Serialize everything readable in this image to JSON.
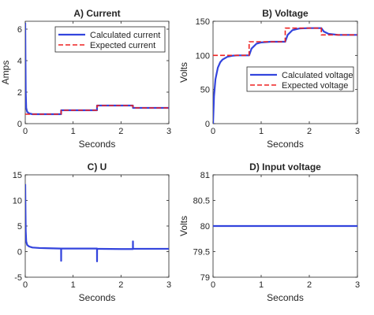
{
  "chart_data": [
    {
      "type": "line",
      "title": "A) Current",
      "xlabel": "Seconds",
      "ylabel": "Amps",
      "xlim": [
        0,
        3
      ],
      "ylim": [
        0,
        6.5
      ],
      "xticks": [
        0,
        1,
        2,
        3
      ],
      "yticks": [
        0,
        2,
        4,
        6
      ],
      "grid": false,
      "legend": "top-right",
      "series": [
        {
          "name": "Calculated current",
          "color": "#3344dd",
          "style": "solid",
          "x": [
            0,
            0.005,
            0.01,
            0.02,
            0.04,
            0.08,
            0.15,
            0.3,
            0.5,
            0.749,
            0.75,
            1.0,
            1.3,
            1.499,
            1.5,
            1.8,
            2.1,
            2.249,
            2.25,
            2.6,
            3.0
          ],
          "y": [
            6.4,
            4.0,
            2.0,
            1.0,
            0.75,
            0.65,
            0.6,
            0.6,
            0.6,
            0.6,
            0.85,
            0.85,
            0.85,
            0.85,
            1.15,
            1.15,
            1.15,
            1.15,
            1.0,
            1.0,
            1.0
          ]
        },
        {
          "name": "Expected current",
          "color": "#ee2222",
          "style": "dashed",
          "x": [
            0,
            0.749,
            0.75,
            1.499,
            1.5,
            2.249,
            2.25,
            3.0
          ],
          "y": [
            0.6,
            0.6,
            0.85,
            0.85,
            1.15,
            1.15,
            1.0,
            1.0
          ]
        }
      ]
    },
    {
      "type": "line",
      "title": "B) Voltage",
      "xlabel": "Seconds",
      "ylabel": "Volts",
      "xlim": [
        0,
        3
      ],
      "ylim": [
        0,
        150
      ],
      "xticks": [
        0,
        1,
        2,
        3
      ],
      "yticks": [
        0,
        50,
        100,
        150
      ],
      "grid": false,
      "legend": "bottom-right",
      "series": [
        {
          "name": "Calculated voltage",
          "color": "#3344dd",
          "style": "solid",
          "x": [
            0,
            0.02,
            0.05,
            0.1,
            0.15,
            0.2,
            0.3,
            0.4,
            0.5,
            0.6,
            0.75,
            0.8,
            0.9,
            1.0,
            1.2,
            1.5,
            1.55,
            1.65,
            1.8,
            2.0,
            2.25,
            2.3,
            2.4,
            2.6,
            3.0
          ],
          "y": [
            0,
            40,
            65,
            82,
            90,
            94,
            98,
            99.5,
            100,
            100,
            100,
            110,
            117,
            119,
            120,
            120,
            130,
            137,
            139.5,
            140,
            140,
            135,
            131.5,
            130,
            130
          ]
        },
        {
          "name": "Expected voltage",
          "color": "#ee2222",
          "style": "dashed",
          "x": [
            0,
            0.749,
            0.75,
            1.499,
            1.5,
            2.249,
            2.25,
            3.0
          ],
          "y": [
            100,
            100,
            120,
            120,
            140,
            140,
            130,
            130
          ]
        }
      ]
    },
    {
      "type": "line",
      "title": "C) U",
      "xlabel": "Seconds",
      "ylabel": "",
      "xlim": [
        0,
        3
      ],
      "ylim": [
        -5,
        15
      ],
      "xticks": [
        0,
        1,
        2,
        3
      ],
      "yticks": [
        -5,
        0,
        5,
        10,
        15
      ],
      "grid": false,
      "series": [
        {
          "color": "#3344dd",
          "style": "solid",
          "x": [
            0,
            0.005,
            0.01,
            0.02,
            0.04,
            0.08,
            0.15,
            0.3,
            0.5,
            0.749,
            0.75,
            0.751,
            0.76,
            1.0,
            1.3,
            1.499,
            1.5,
            1.501,
            1.51,
            2.0,
            2.249,
            2.25,
            2.251,
            2.26,
            2.6,
            3.0
          ],
          "y": [
            13.2,
            8.0,
            4.0,
            2.0,
            1.3,
            1.0,
            0.8,
            0.7,
            0.65,
            0.6,
            -1.8,
            0.6,
            0.6,
            0.6,
            0.6,
            0.6,
            -1.9,
            0.55,
            0.55,
            0.5,
            0.5,
            2.0,
            0.55,
            0.55,
            0.55,
            0.55
          ]
        }
      ]
    },
    {
      "type": "line",
      "title": "D) Input voltage",
      "xlabel": "Seconds",
      "ylabel": "Volts",
      "xlim": [
        0,
        3
      ],
      "ylim": [
        79,
        81
      ],
      "xticks": [
        0,
        1,
        2,
        3
      ],
      "yticks": [
        79,
        79.5,
        80,
        80.5,
        81
      ],
      "grid": false,
      "series": [
        {
          "color": "#3344dd",
          "style": "solid",
          "x": [
            0,
            3
          ],
          "y": [
            80,
            80
          ]
        }
      ]
    }
  ]
}
